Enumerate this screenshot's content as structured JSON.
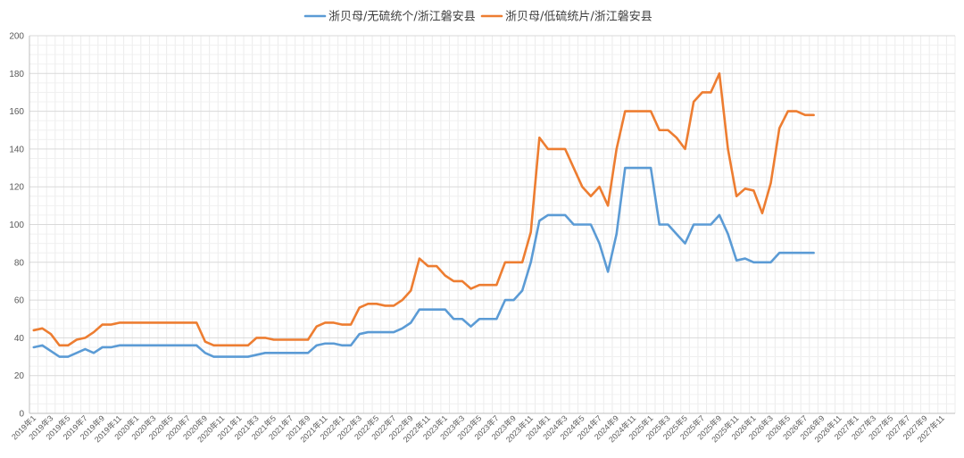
{
  "chart_data": {
    "type": "line",
    "title": "",
    "xlabel": "",
    "ylabel": "",
    "ylim": [
      0,
      200
    ],
    "yticks": [
      0,
      20,
      40,
      60,
      80,
      100,
      120,
      140,
      160,
      180,
      200
    ],
    "grid": true,
    "legend_position": "top",
    "x_labels": [
      "2019年1",
      "2019年3",
      "2019年5",
      "2019年7",
      "2019年9",
      "2019年11",
      "2020年1",
      "2020年3",
      "2020年5",
      "2020年7",
      "2020年9",
      "2020年11",
      "2021年1",
      "2021年3",
      "2021年5",
      "2021年7",
      "2021年9",
      "2021年11",
      "2022年1",
      "2022年3",
      "2022年5",
      "2022年7",
      "2022年9",
      "2022年11",
      "2023年1",
      "2023年3",
      "2023年5",
      "2023年7",
      "2023年9",
      "2023年11",
      "2024年1",
      "2024年3",
      "2024年5",
      "2024年7",
      "2024年9",
      "2024年11",
      "2025年1",
      "2025年3",
      "2025年5",
      "2025年7",
      "2025年9",
      "2025年11",
      "2026年1",
      "2026年3",
      "2026年5",
      "2026年7",
      "2026年9",
      "2026年11",
      "2027年1",
      "2027年3",
      "2027年5",
      "2027年7",
      "2027年9",
      "2027年11"
    ],
    "total_months": 108,
    "series": [
      {
        "name": "浙贝母/无硫统个/浙江磐安县",
        "color": "#5B9BD5",
        "values": [
          35,
          36,
          33,
          30,
          30,
          32,
          34,
          32,
          35,
          35,
          36,
          36,
          36,
          36,
          36,
          36,
          36,
          36,
          36,
          36,
          32,
          30,
          30,
          30,
          30,
          30,
          31,
          32,
          32,
          32,
          32,
          32,
          32,
          36,
          37,
          37,
          36,
          36,
          42,
          43,
          43,
          43,
          43,
          45,
          48,
          55,
          55,
          55,
          55,
          50,
          50,
          46,
          50,
          50,
          50,
          60,
          60,
          65,
          80,
          102,
          105,
          105,
          105,
          100,
          100,
          100,
          90,
          75,
          95,
          130,
          130,
          130,
          130,
          100,
          100,
          95,
          90,
          100,
          100,
          100,
          105,
          95,
          81,
          82,
          80,
          80,
          80,
          85,
          85,
          85,
          85,
          85
        ]
      },
      {
        "name": "浙贝母/低硫统片/浙江磐安县",
        "color": "#ED7D31",
        "values": [
          44,
          45,
          42,
          36,
          36,
          39,
          40,
          43,
          47,
          47,
          48,
          48,
          48,
          48,
          48,
          48,
          48,
          48,
          48,
          48,
          38,
          36,
          36,
          36,
          36,
          36,
          40,
          40,
          39,
          39,
          39,
          39,
          39,
          46,
          48,
          48,
          47,
          47,
          56,
          58,
          58,
          57,
          57,
          60,
          65,
          82,
          78,
          78,
          73,
          70,
          70,
          66,
          68,
          68,
          68,
          80,
          80,
          80,
          96,
          146,
          140,
          140,
          140,
          130,
          120,
          115,
          120,
          110,
          140,
          160,
          160,
          160,
          160,
          150,
          150,
          146,
          140,
          165,
          170,
          170,
          180,
          140,
          115,
          119,
          118,
          106,
          122,
          151,
          160,
          160,
          158,
          158
        ]
      }
    ]
  }
}
